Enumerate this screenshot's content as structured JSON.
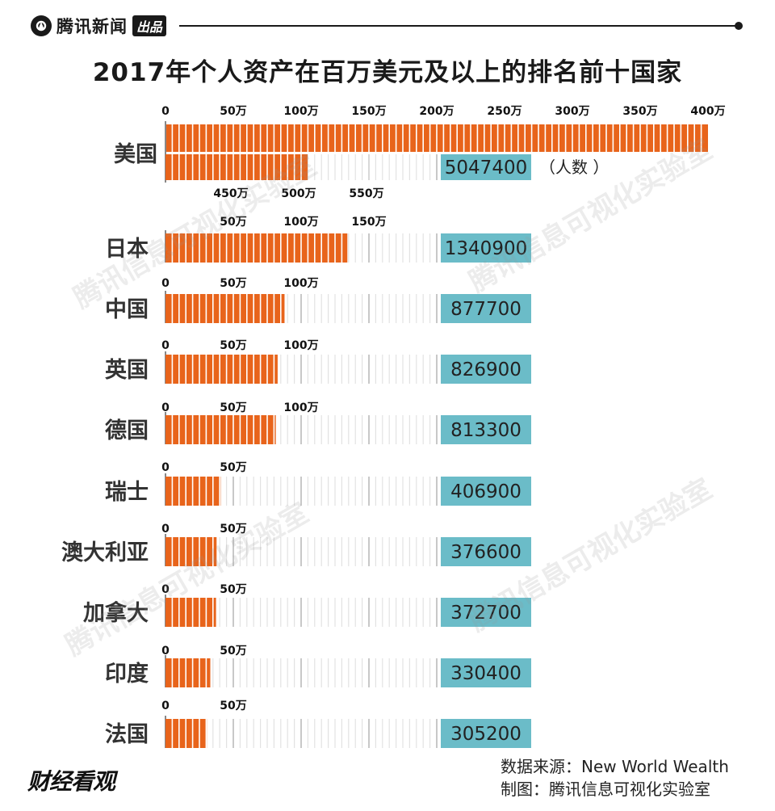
{
  "header": {
    "brand": "腾讯新闻",
    "tag": "出品"
  },
  "title": "2017年个人资产在百万美元及以上的排名前十国家",
  "unit_label": "（人数 ）",
  "source": "数据来源：New World Wealth",
  "credit": "制图：腾讯信息可视化实验室",
  "footer_logo": "财经看观",
  "watermark": "腾讯信息可视化实验室",
  "colors": {
    "bar": "#e8641b",
    "value_box": "#6bbcc8"
  },
  "chart_data": {
    "type": "bar",
    "title": "2017年个人资产在百万美元及以上的排名前十国家",
    "orientation": "horizontal",
    "tick_step": 500000,
    "tick_label_suffix": "万",
    "categories": [
      "美国",
      "日本",
      "中国",
      "英国",
      "德国",
      "瑞士",
      "澳大利亚",
      "加拿大",
      "印度",
      "法国"
    ],
    "values": [
      5047400,
      1340900,
      877700,
      826900,
      813300,
      406900,
      376600,
      372700,
      330400,
      305200
    ],
    "tick_labels": [
      [
        "0",
        "50万",
        "100万",
        "150万",
        "200万",
        "250万",
        "300万",
        "350万",
        "400万",
        "450万",
        "500万",
        "550万"
      ],
      [
        "50万",
        "100万",
        "150万"
      ],
      [
        "0",
        "50万",
        "100万"
      ],
      [
        "0",
        "50万",
        "100万"
      ],
      [
        "0",
        "50万",
        "100万"
      ],
      [
        "0",
        "50万"
      ],
      [
        "0",
        "50万"
      ],
      [
        "0",
        "50万"
      ],
      [
        "0",
        "50万"
      ],
      [
        "0",
        "50万"
      ]
    ]
  }
}
